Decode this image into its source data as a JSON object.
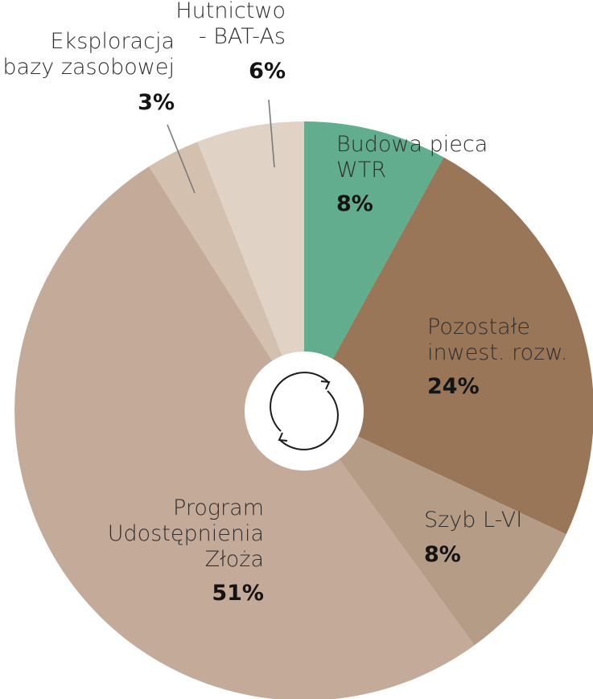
{
  "chart_data": {
    "type": "pie",
    "donut": true,
    "unit": "%",
    "slices": [
      {
        "label": "Budowa pieca WTR",
        "value": 8,
        "percent_label": "8%",
        "color": "#62ad8d"
      },
      {
        "label": "Pozostałe inwest. rozw.",
        "value": 24,
        "percent_label": "24%",
        "color": "#9a7658"
      },
      {
        "label": "Szyb L-VI",
        "value": 8,
        "percent_label": "8%",
        "color": "#b49c86"
      },
      {
        "label": "Program Udostępnienia Złoża",
        "value": 51,
        "percent_label": "51%",
        "color": "#c4aa99"
      },
      {
        "label": "Eksploracja bazy zasobowej",
        "value": 3,
        "percent_label": "3%",
        "color": "#d3c0ae"
      },
      {
        "label": "Hutnictwo - BAT-As",
        "value": 6,
        "percent_label": "6%",
        "color": "#e0d2c4"
      }
    ]
  },
  "labels": {
    "wtr": {
      "line1": "Budowa pieca",
      "line2": "WTR",
      "pct": "8%"
    },
    "pozostale": {
      "line1": "Pozostałe",
      "line2": "inwest. rozw.",
      "pct": "24%"
    },
    "szyb": {
      "line1": "Szyb L-VI",
      "pct": "8%"
    },
    "program": {
      "line1": "Program",
      "line2": "Udostępnienia",
      "line3": "Złoża",
      "pct": "51%"
    },
    "eksploracja": {
      "line1": "Eksploracja",
      "line2": "bazy zasobowej",
      "pct": "3%"
    },
    "hutnictwo": {
      "line1": "Hutnictwo",
      "line2": "- BAT-As",
      "pct": "6%"
    }
  },
  "center_icon": "refresh-cycle-icon"
}
